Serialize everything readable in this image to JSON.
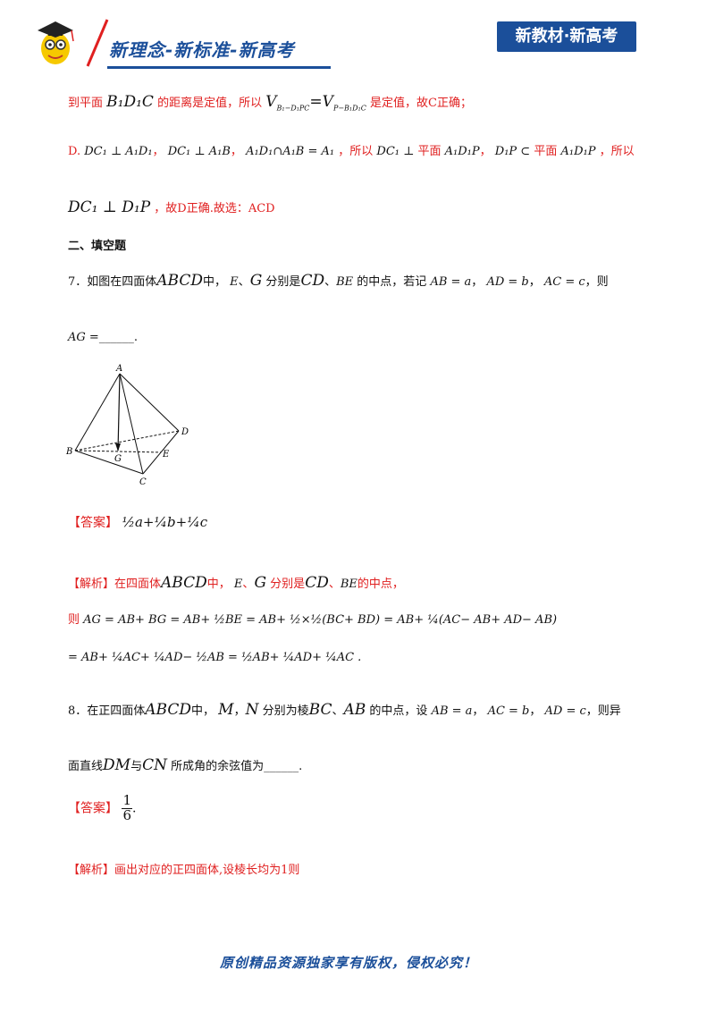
{
  "header": {
    "left_title": "新理念-新标准-新高考",
    "right_badge": "新教材·新高考"
  },
  "lines": {
    "l1_a": "到平面",
    "l1_b": "B₁D₁C",
    "l1_c": "的距离是定值，所以",
    "l1_d": "V",
    "l1_e": "=V",
    "l1_f": "是定值，故C正确；",
    "l2_a": "D.",
    "l2_b": "DC₁ ⊥ A₁D₁",
    "l2_c": "DC₁ ⊥ A₁B",
    "l2_d": "A₁D₁∩A₁B = A₁",
    "l2_e": "，所以",
    "l2_f": "DC₁ ⊥",
    "l2_g": "平面",
    "l2_h": "A₁D₁P",
    "l2_i": "D₁P ⊂",
    "l2_j": "平面",
    "l2_k": "A₁D₁P",
    "l2_l": "，所以",
    "l3_a": "DC₁ ⊥ D₁P",
    "l3_b": "，故D正确.故选：ACD"
  },
  "section_title": "二、填空题",
  "q7": {
    "text_a": "7．如图在四面体",
    "abcd": "ABCD",
    "text_b": "中，",
    "e": "E",
    "dun": "、",
    "g": "G",
    "text_c": "分别是",
    "cd": "CD",
    "dun2": "、",
    "be": "BE",
    "text_d": "的中点，若记",
    "v1": "AB = a",
    "v2": "AD = b",
    "v3": "AC = c",
    "text_e": "，则",
    "ag": "AG =",
    "blank": "______."
  },
  "figure": {
    "labels": [
      "A",
      "B",
      "C",
      "D",
      "E",
      "G"
    ]
  },
  "answer7": {
    "tag": "【答案】",
    "expr": "½a+¼b+¼c"
  },
  "analysis7": {
    "tag": "【解析】",
    "text": "在四面体",
    "abcd": "ABCD",
    "text2": "中，",
    "e": "E",
    "dun": "、",
    "g": "G",
    "text3": "分别是",
    "cd": "CD",
    "dun2": "、",
    "be": "BE",
    "text4": "的中点，",
    "line2_prefix": "则",
    "line2": "AG = AB+ BG = AB+ ½BE = AB+ ½×½(BC+ BD) = AB+ ¼(AC− AB+ AD− AB)",
    "line3": "= AB+ ¼AC+ ¼AD− ½AB = ½AB+ ¼AD+ ¼AC ."
  },
  "q8": {
    "text_a": "8．在正四面体",
    "abcd": "ABCD",
    "text_b": "中，",
    "m": "M",
    "comma": "，",
    "n": "N",
    "text_c": "分别为棱",
    "bc": "BC",
    "dun": "、",
    "ab": "AB",
    "text_d": "的中点，设",
    "v1": "AB = a",
    "v2": "AC = b",
    "v3": "AD = c",
    "text_e": "，则异",
    "line2_a": "面直线",
    "dm": "DM",
    "yu": "与",
    "cn": "CN",
    "line2_b": "所成角的余弦值为______."
  },
  "answer8": {
    "tag": "【答案】",
    "num": "1",
    "den": "6",
    "dot": "."
  },
  "analysis8": {
    "tag": "【解析】",
    "text": "画出对应的正四面体,设棱长均为1则"
  },
  "footer": "原创精品资源独家享有版权，侵权必究！"
}
